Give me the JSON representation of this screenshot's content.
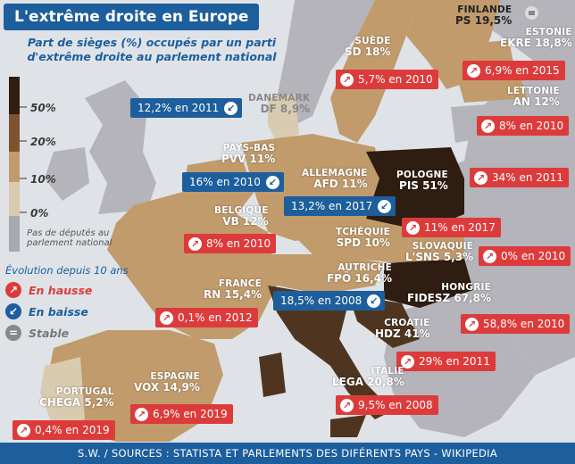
{
  "title": "L'extrême droite en Europe",
  "subtitle": "Part de sièges (%) occupés par un parti d'extrême droite au parlement national",
  "scale": {
    "labels": [
      "50%",
      "20%",
      "10%",
      "0%"
    ],
    "colors": [
      "#2e1d10",
      "#7e5430",
      "#c19b6c",
      "#d9cbb0"
    ],
    "nodata_color": "#a8a8b0",
    "nodata_label": "Pas de députés au parlement national"
  },
  "evolution": {
    "title": "Évolution depuis 10 ans",
    "up": "En hausse",
    "down": "En baisse",
    "stable": "Stable",
    "up_color": "#dd3b3b",
    "down_color": "#1d5e9c",
    "stable_color": "#888888"
  },
  "countries": {
    "finlande": {
      "name": "FINLANDE",
      "party": "PS 19,5%"
    },
    "suede": {
      "name": "SUÈDE",
      "party": "SD 18%",
      "change": "5,7% en 2010"
    },
    "estonie": {
      "name": "ESTONIE",
      "party": "EKRE 18,8%",
      "change": "6,9% en 2015"
    },
    "lettonie": {
      "name": "LETTONIE",
      "party": "AN 12%",
      "change": "8% en 2010"
    },
    "danemark": {
      "name": "DANEMARK",
      "party": "DF 8,9%",
      "change": "12,2% en 2011"
    },
    "paysbas": {
      "name": "PAYS-BAS",
      "party": "PVV 11%",
      "change": "16% en 2010"
    },
    "allemagne": {
      "name": "ALLEMAGNE",
      "party": "AFD 11%",
      "change": "13,2% en 2017"
    },
    "pologne": {
      "name": "POLOGNE",
      "party": "PIS 51%",
      "change": "34% en 2011"
    },
    "belgique": {
      "name": "BELGIQUE",
      "party": "VB 12%",
      "change": "8% en 2010"
    },
    "tcheque": {
      "name": "TCHÉQUIE",
      "party": "SPD 10%",
      "change": "11% en 2017"
    },
    "slovaquie": {
      "name": "SLOVAQUIE",
      "party": "L'SNS 5,3%",
      "change": "0% en 2010"
    },
    "autriche": {
      "name": "AUTRICHE",
      "party": "FPÖ 16,4%",
      "change": "18,5% en 2008"
    },
    "france": {
      "name": "FRANCE",
      "party": "RN 15,4%",
      "change": "0,1% en 2012"
    },
    "hongrie": {
      "name": "HONGRIE",
      "party": "FIDESZ 67,8%",
      "change": "58,8% en 2010"
    },
    "croatie": {
      "name": "CROATIE",
      "party": "HDZ 41%",
      "change": "29% en 2011"
    },
    "espagne": {
      "name": "ESPAGNE",
      "party": "VOX 14,9%",
      "change": "6,9% en 2019"
    },
    "italie": {
      "name": "ITALIE",
      "party": "LEGA 20,8%",
      "change": "9,5% en 2008"
    },
    "portugal": {
      "name": "PORTUGAL",
      "party": "CHEGA 5,2%",
      "change": "0,4% en 2019"
    }
  },
  "footer": "S.W. / SOURCES : STATISTA ET PARLEMENTS DES DIFÉRENTS PAYS - WIKIPEDIA"
}
